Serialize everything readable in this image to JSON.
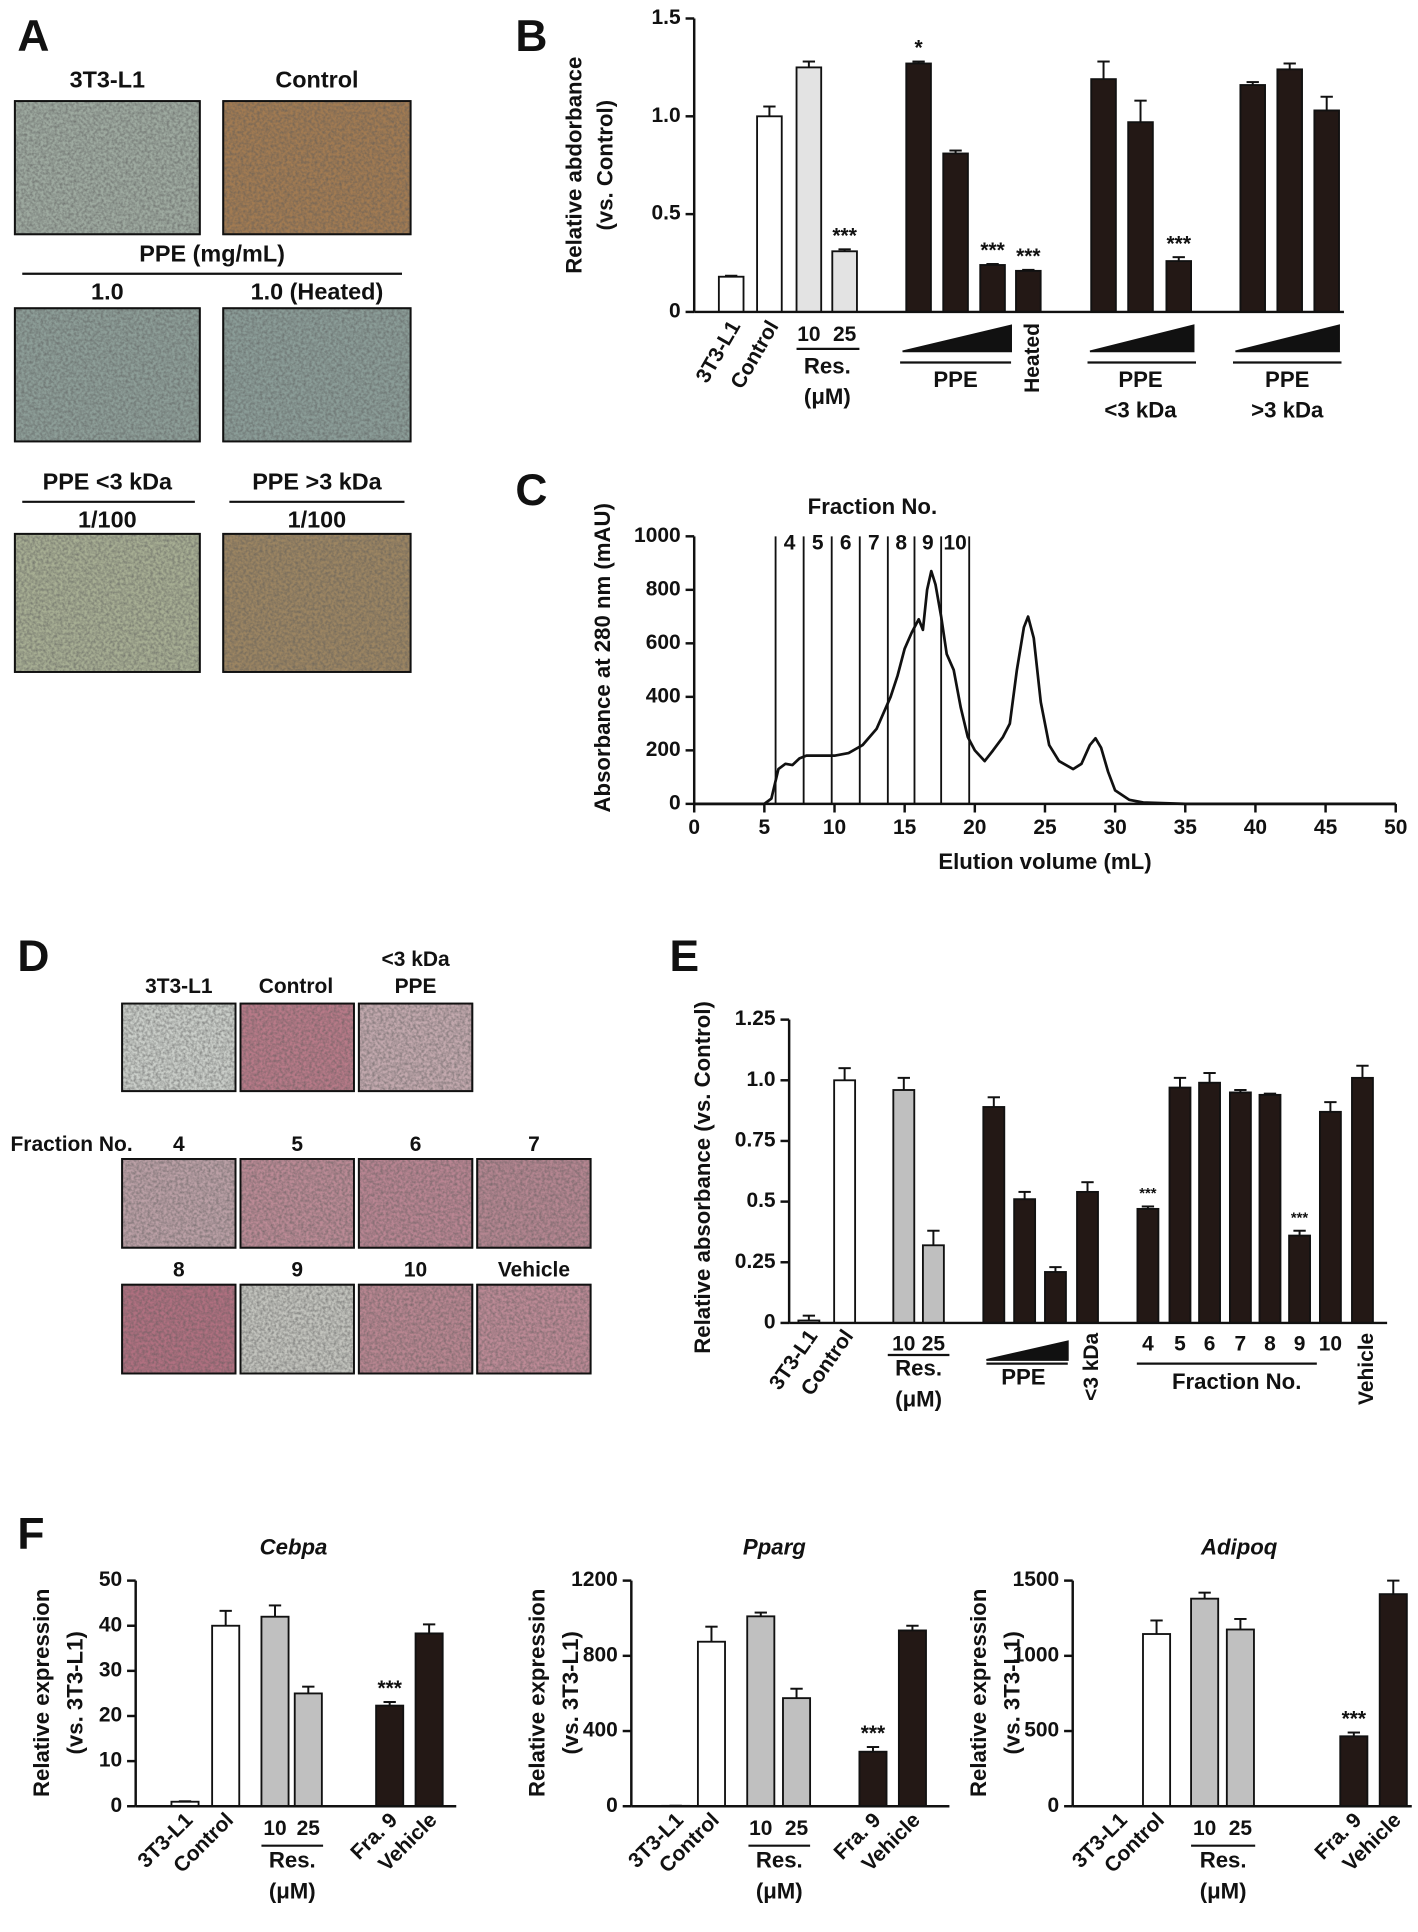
{
  "panel_letters": [
    "A",
    "B",
    "C",
    "D",
    "E",
    "F"
  ],
  "panel_a": {
    "row1": [
      "3T3-L1",
      "Control"
    ],
    "treatment": "PPE (mg/mL)",
    "row2": [
      "1.0",
      "1.0 (Heated)"
    ],
    "row3_header": [
      "PPE <3 kDa",
      "PPE >3 kDa"
    ],
    "row3": [
      "1/100",
      "1/100"
    ]
  },
  "panel_d": {
    "row1": [
      "3T3-L1",
      "Control"
    ],
    "row1_extra": [
      "<3 kDa",
      "PPE"
    ],
    "row_label": "Fraction No.",
    "row2": [
      "4",
      "5",
      "6",
      "7"
    ],
    "row3": [
      "8",
      "9",
      "10",
      "Vehicle"
    ]
  },
  "chart_data": [
    {
      "type": "bar",
      "ylabel": [
        "Relative abdorbance",
        "(vs. Control)"
      ],
      "categories": [
        "3T3-L1",
        "Control",
        "10",
        "25",
        null,
        null,
        null,
        "Heated",
        null,
        null,
        null,
        null,
        null,
        null
      ],
      "values": [
        0.18,
        1.0,
        1.25,
        0.31,
        1.27,
        0.81,
        0.24,
        0.21,
        1.19,
        0.97,
        0.26,
        1.16,
        1.24,
        1.03
      ],
      "errors": [
        0.005,
        0.05,
        0.03,
        0.01,
        0.01,
        0.015,
        0.005,
        0.005,
        0.09,
        0.11,
        0.02,
        0.015,
        0.03,
        0.07
      ],
      "colors": [
        "#ffffff",
        "#ffffff",
        "#e3e3e3",
        "#e3e3e3",
        "#231815",
        "#231815",
        "#231815",
        "#231815",
        "#231815",
        "#231815",
        "#231815",
        "#231815",
        "#231815",
        "#231815"
      ],
      "annotations": [
        null,
        null,
        null,
        "***",
        "*",
        null,
        "***",
        "***",
        null,
        null,
        "***",
        null,
        null,
        null
      ],
      "groups": [
        {
          "lines": [
            "Res.",
            "(μM)"
          ]
        },
        {
          "lines": [
            "PPE"
          ]
        },
        {
          "lines": [
            "PPE",
            "<3 kDa"
          ]
        },
        {
          "lines": [
            "PPE",
            ">3 kDa"
          ]
        }
      ],
      "ylim": [
        0,
        1.5
      ],
      "yticks": [
        0,
        0.5,
        {
          "value": 1,
          "label": "1.0"
        },
        1.5
      ]
    },
    {
      "type": "line",
      "xlabel": "Elution volume (mL)",
      "ylabel": "Absorbance at 280 nm (mAU)",
      "annotation": "Fraction No.",
      "x": [
        0,
        5,
        5.5,
        6,
        6.5,
        7,
        7.5,
        8,
        9,
        10,
        11,
        12,
        13,
        14,
        14.5,
        15,
        15.5,
        16,
        16.3,
        16.6,
        16.9,
        17.2,
        17.6,
        18,
        18.5,
        19,
        19.5,
        20,
        20.7,
        21.3,
        22,
        22.5,
        23,
        23.5,
        23.8,
        24.2,
        24.7,
        25.3,
        26,
        27,
        27.6,
        28.2,
        28.6,
        29,
        29.5,
        30,
        31,
        32,
        35,
        50
      ],
      "y": [
        0,
        0,
        20,
        130,
        150,
        145,
        170,
        180,
        180,
        180,
        190,
        220,
        280,
        400,
        480,
        580,
        640,
        690,
        650,
        800,
        870,
        820,
        700,
        560,
        500,
        360,
        250,
        200,
        160,
        200,
        250,
        300,
        500,
        660,
        700,
        620,
        380,
        220,
        160,
        130,
        150,
        220,
        245,
        210,
        120,
        50,
        15,
        5,
        0,
        0
      ],
      "color": "#111111",
      "fraction_bounds": [
        5.8,
        7.8,
        9.8,
        11.8,
        13.8,
        15.7,
        17.6,
        19.6
      ],
      "fractions": [
        "4",
        "5",
        "6",
        "7",
        "8",
        "9",
        "10"
      ],
      "xlim": [
        0,
        50
      ],
      "xticks": [
        0,
        5,
        10,
        15,
        20,
        25,
        30,
        35,
        40,
        45,
        50
      ],
      "ylim": [
        0,
        1000
      ],
      "yticks": [
        0,
        200,
        400,
        600,
        800,
        1000
      ]
    },
    {
      "type": "bar",
      "ylabel": [
        "Relative absorbance (vs. Control)"
      ],
      "categories": [
        "3T3-L1",
        "Control",
        "10",
        "25",
        null,
        null,
        null,
        "<3 kDa",
        "4",
        "5",
        "6",
        "7",
        "8",
        "9",
        "10",
        "Vehicle"
      ],
      "values": [
        0.01,
        1.0,
        0.96,
        0.32,
        0.89,
        0.51,
        0.21,
        0.54,
        0.47,
        0.97,
        0.99,
        0.95,
        0.94,
        0.36,
        0.87,
        1.01
      ],
      "errors": [
        0.02,
        0.05,
        0.05,
        0.06,
        0.04,
        0.03,
        0.02,
        0.04,
        0.01,
        0.04,
        0.04,
        0.01,
        0.005,
        0.02,
        0.04,
        0.05
      ],
      "colors": [
        "#ffffff",
        "#ffffff",
        "#bfbfbf",
        "#bfbfbf",
        "#231815",
        "#231815",
        "#231815",
        "#231815",
        "#231815",
        "#231815",
        "#231815",
        "#231815",
        "#231815",
        "#231815",
        "#231815",
        "#231815"
      ],
      "annotations": [
        null,
        null,
        null,
        null,
        null,
        null,
        null,
        null,
        "***",
        null,
        null,
        null,
        null,
        "***",
        null,
        null
      ],
      "groups": [
        {
          "lines": [
            "Res.",
            "(μM)"
          ]
        },
        {
          "lines": [
            "PPE"
          ]
        },
        {
          "lines": [
            "Fraction No."
          ]
        }
      ],
      "ylim": [
        0,
        1.25
      ],
      "yticks": [
        0,
        0.25,
        0.5,
        0.75,
        {
          "value": 1,
          "label": "1.0"
        },
        1.25
      ]
    },
    {
      "type": "bar",
      "title": "Cebpa",
      "ylabel": [
        "Relative expression",
        "(vs. 3T3-L1)"
      ],
      "categories": [
        "3T3-L1",
        "Control",
        "10",
        "25",
        "Fra. 9",
        "Vehicle"
      ],
      "values": [
        1.0,
        40,
        42,
        25,
        22.3,
        38.3
      ],
      "errors": [
        0.1,
        3.3,
        2.5,
        1.5,
        0.8,
        2
      ],
      "colors": [
        "#ffffff",
        "#ffffff",
        "#c0c0c0",
        "#c0c0c0",
        "#231815",
        "#231815"
      ],
      "annotations": [
        null,
        null,
        null,
        null,
        "***",
        null
      ],
      "groups": [
        {
          "lines": [
            "Res.",
            "(μM)"
          ]
        }
      ],
      "ylim": [
        0,
        50
      ],
      "yticks": [
        0,
        10,
        20,
        30,
        40,
        50
      ]
    },
    {
      "type": "bar",
      "title": "Pparg",
      "ylabel": [
        "Relative expression",
        "(vs. 3T3-L1)"
      ],
      "categories": [
        "3T3-L1",
        "Control",
        "10",
        "25",
        "Fra. 9",
        "Vehicle"
      ],
      "values": [
        2,
        875,
        1010,
        575,
        290,
        935
      ],
      "errors": [
        0.5,
        80,
        20,
        50,
        25,
        25
      ],
      "colors": [
        "#ffffff",
        "#ffffff",
        "#c0c0c0",
        "#c0c0c0",
        "#231815",
        "#231815"
      ],
      "annotations": [
        null,
        null,
        null,
        null,
        "***",
        null
      ],
      "groups": [
        {
          "lines": [
            "Res.",
            "(μM)"
          ]
        }
      ],
      "ylim": [
        0,
        1200
      ],
      "yticks": [
        0,
        400,
        800,
        1200
      ]
    },
    {
      "type": "bar",
      "title": "Adipoq",
      "ylabel": [
        "Relative expression",
        "(vs. 3T3-L1)"
      ],
      "categories": [
        "3T3-L1",
        "Control",
        "10",
        "25",
        "Fra. 9",
        "Vehicle"
      ],
      "values": [
        1,
        1145,
        1380,
        1175,
        465,
        1410
      ],
      "errors": [
        0.5,
        90,
        40,
        70,
        25,
        90
      ],
      "colors": [
        "#ffffff",
        "#ffffff",
        "#c0c0c0",
        "#c0c0c0",
        "#231815",
        "#231815"
      ],
      "annotations": [
        null,
        null,
        null,
        null,
        "***",
        null
      ],
      "groups": [
        {
          "lines": [
            "Res.",
            "(μM)"
          ]
        }
      ],
      "ylim": [
        0,
        1500
      ],
      "yticks": [
        0,
        500,
        1000,
        1500
      ]
    }
  ]
}
